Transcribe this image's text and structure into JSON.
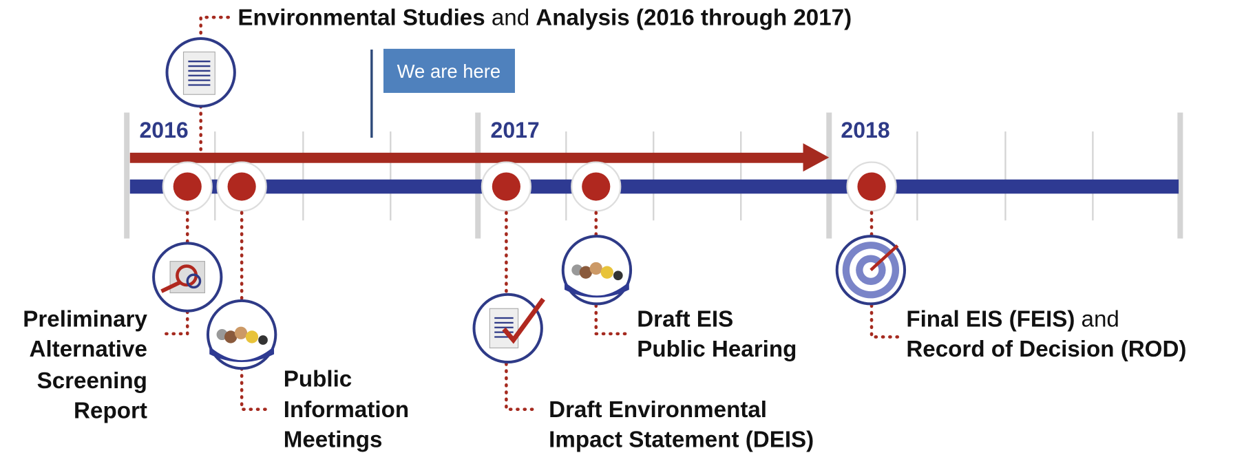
{
  "header": {
    "title_parts": [
      "Environmental Studies",
      "and",
      "Analysis (2016 through 2017)"
    ]
  },
  "years": [
    "2016",
    "2017",
    "2018"
  ],
  "marker": "We are here",
  "milestones": [
    {
      "lines": [
        "Preliminary",
        "Alternative",
        "Screening",
        "Report"
      ]
    },
    {
      "lines": [
        "Public",
        "Information",
        "Meetings"
      ]
    },
    {
      "lines": [
        "Draft Environmental",
        "Impact Statement (DEIS)"
      ]
    },
    {
      "lines": [
        "Draft EIS",
        "Public Hearing"
      ]
    },
    {
      "lines": [
        "Final EIS (FEIS)",
        "and",
        "Record of Decision (ROD)"
      ]
    }
  ]
}
